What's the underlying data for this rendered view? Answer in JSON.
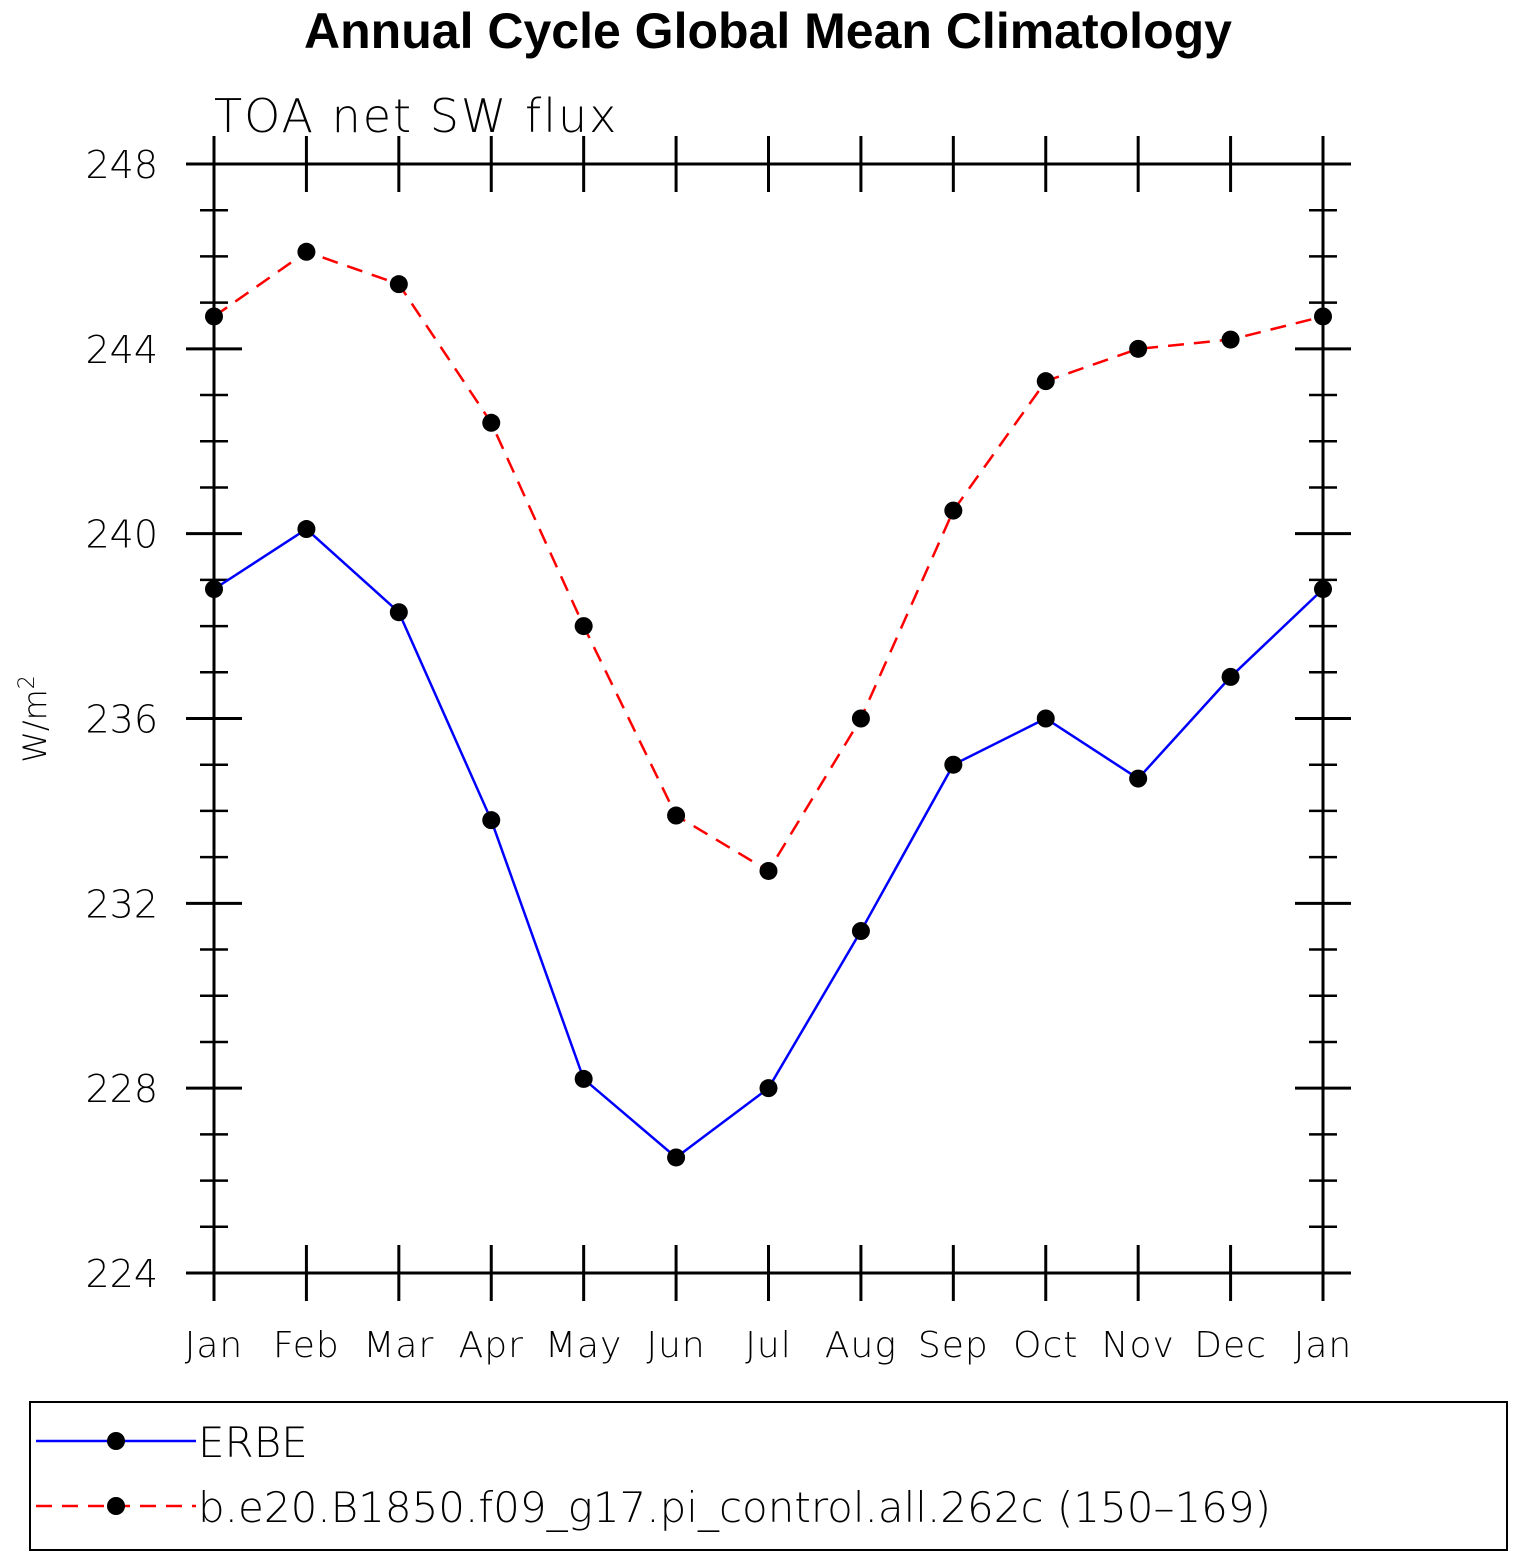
{
  "chart_data": {
    "type": "line",
    "title": "Annual Cycle Global Mean Climatology",
    "subtitle": "TOA net SW flux",
    "xlabel": "",
    "ylabel": "W/m",
    "ylabel_sup": "2",
    "categories": [
      "Jan",
      "Feb",
      "Mar",
      "Apr",
      "May",
      "Jun",
      "Jul",
      "Aug",
      "Sep",
      "Oct",
      "Nov",
      "Dec",
      "Jan"
    ],
    "ylim": [
      224,
      248
    ],
    "yticks": [
      224,
      228,
      232,
      236,
      240,
      244,
      248
    ],
    "yminor_step": 1,
    "grid": false,
    "legend_position": "bottom",
    "series": [
      {
        "name": "ERBE",
        "color": "#0000ff",
        "dash": "solid",
        "marker": "circle",
        "values": [
          238.8,
          240.1,
          238.3,
          233.8,
          228.2,
          226.5,
          228.0,
          231.4,
          235.0,
          236.0,
          234.7,
          236.9,
          238.8
        ]
      },
      {
        "name": "b.e20.B1850.f09_g17.pi_control.all.262c (150–169)",
        "color": "#ff0000",
        "dash": "dashed",
        "marker": "circle",
        "values": [
          244.7,
          246.1,
          245.4,
          242.4,
          238.0,
          233.9,
          232.7,
          236.0,
          240.5,
          243.3,
          244.0,
          244.2,
          244.7
        ]
      }
    ]
  }
}
